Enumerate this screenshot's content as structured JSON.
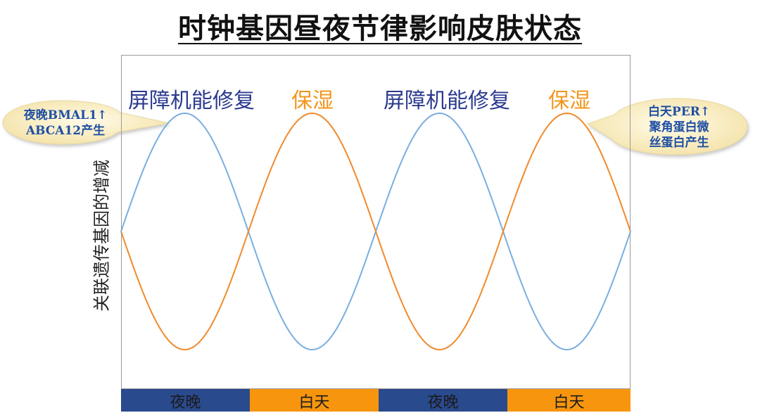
{
  "title": "时钟基因昼夜节律影响皮肤状态",
  "y_axis_label": "关联遗传基因的增减",
  "phase_labels": [
    "屏障机能修复",
    "保湿",
    "屏障机能修复",
    "保湿"
  ],
  "bands": [
    "夜晚",
    "白天",
    "夜晚",
    "白天"
  ],
  "callout_left": {
    "line1": "夜晚BMAL1↑",
    "line2": "ABCA12产生"
  },
  "callout_right": {
    "line1": "白天PER↑",
    "line2": "聚角蛋白微",
    "line3": "丝蛋白产生"
  },
  "colors": {
    "blue_curve": "#7aaee0",
    "orange_curve": "#f08a2c",
    "night": "#2a4a8e",
    "day": "#f7960e",
    "callout_fill": "#f8edc3"
  }
}
